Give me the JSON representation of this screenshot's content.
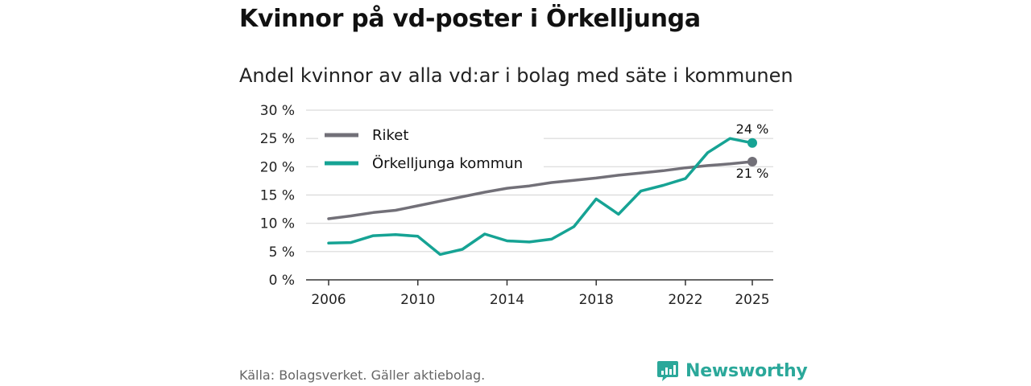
{
  "header": {
    "title": "Kvinnor på vd-poster i Örkelljunga",
    "subtitle": "Andel kvinnor av alla vd:ar i bolag med säte i kommunen"
  },
  "footer": {
    "source": "Källa: Bolagsverket. Gäller aktiebolag.",
    "brand": "Newsworthy"
  },
  "colors": {
    "riket": "#727078",
    "kommun": "#16a394",
    "grid": "#d9d9d9",
    "axis": "#333333"
  },
  "chart_data": {
    "type": "line",
    "title": "Kvinnor på vd-poster i Örkelljunga",
    "subtitle": "Andel kvinnor av alla vd:ar i bolag med säte i kommunen",
    "xlabel": "",
    "ylabel": "",
    "xlim": [
      2006,
      2025
    ],
    "ylim": [
      0,
      30
    ],
    "x_ticks": [
      2006,
      2010,
      2014,
      2018,
      2022,
      2025
    ],
    "y_ticks": [
      {
        "value": 0,
        "label": "0 %"
      },
      {
        "value": 5,
        "label": "5 %"
      },
      {
        "value": 10,
        "label": "10 %"
      },
      {
        "value": 15,
        "label": "15 %"
      },
      {
        "value": 20,
        "label": "20 %"
      },
      {
        "value": 25,
        "label": "25 %"
      },
      {
        "value": 30,
        "label": "30 %"
      }
    ],
    "grid": true,
    "legend_position": "top-left",
    "x": [
      2006,
      2007,
      2008,
      2009,
      2010,
      2011,
      2012,
      2013,
      2014,
      2015,
      2016,
      2017,
      2018,
      2019,
      2020,
      2021,
      2022,
      2023,
      2024,
      2025
    ],
    "series": [
      {
        "name": "Riket",
        "color_key": "riket",
        "values": [
          10.8,
          11.3,
          11.9,
          12.3,
          13.1,
          13.9,
          14.7,
          15.5,
          16.2,
          16.6,
          17.2,
          17.6,
          18.0,
          18.5,
          18.9,
          19.3,
          19.8,
          20.2,
          20.5,
          20.9
        ],
        "end_label": "21 %",
        "end_label_position": "below"
      },
      {
        "name": "Örkelljunga kommun",
        "color_key": "kommun",
        "values": [
          6.5,
          6.6,
          7.8,
          8.0,
          7.7,
          4.5,
          5.4,
          8.1,
          6.9,
          6.7,
          7.2,
          9.4,
          14.3,
          11.6,
          15.7,
          16.7,
          17.9,
          22.5,
          25.0,
          24.2
        ],
        "end_label": "24 %",
        "end_label_position": "above"
      }
    ]
  }
}
